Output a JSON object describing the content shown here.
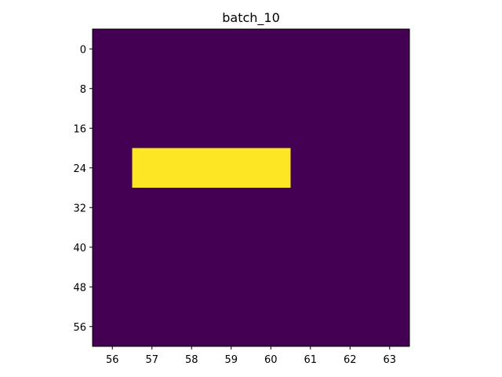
{
  "chart_data": {
    "type": "heatmap",
    "title": "batch_10",
    "xlabel": "",
    "ylabel": "",
    "x_ticks": [
      56,
      57,
      58,
      59,
      60,
      61,
      62,
      63
    ],
    "y_ticks": [
      0,
      8,
      16,
      24,
      32,
      40,
      48,
      56
    ],
    "xlim": [
      55.5,
      63.5
    ],
    "ylim": [
      60,
      -4
    ],
    "y_inverted": true,
    "background_value": 0,
    "background_color": "#440154",
    "highlight_color": "#fde725",
    "grid": false,
    "cells": [
      {
        "x_range": [
          56.5,
          60.5
        ],
        "y_range": [
          20,
          28
        ],
        "value": 1
      }
    ]
  }
}
